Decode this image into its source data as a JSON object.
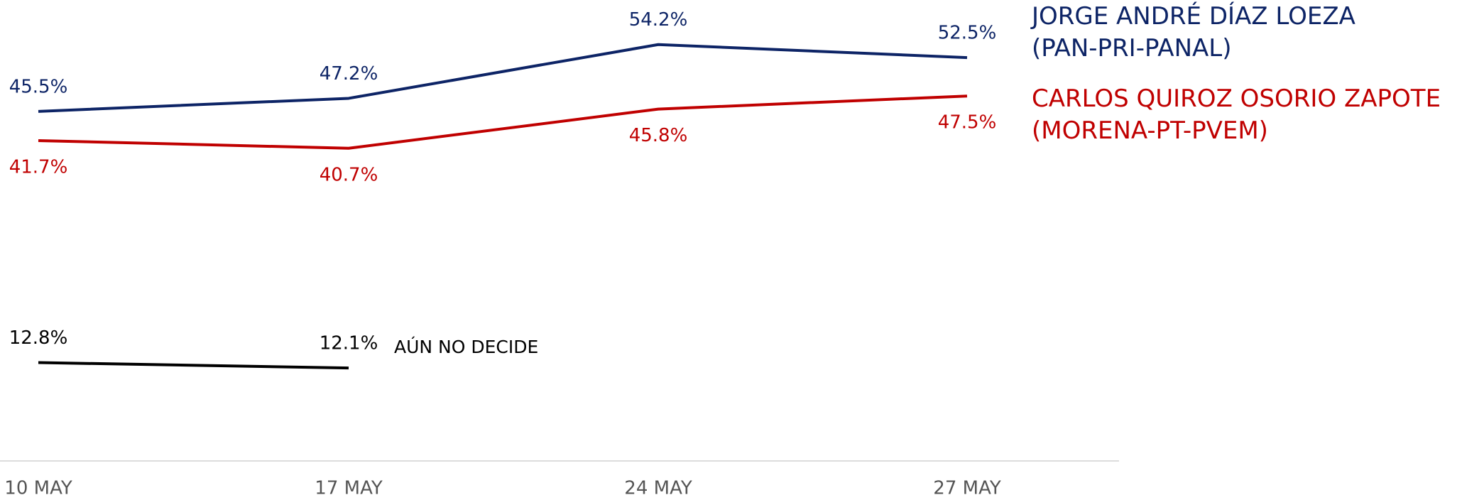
{
  "chart_data": {
    "type": "line",
    "categories": [
      "10 MAY",
      "17 MAY",
      "24 MAY",
      "27 MAY"
    ],
    "series": [
      {
        "name": "JORGE ANDRÉ DÍAZ LOEZA (PAN-PRI-PANAL)",
        "color": "#0d2466",
        "values": [
          45.5,
          47.2,
          54.2,
          52.5
        ],
        "value_labels": [
          "45.5%",
          "47.2%",
          "54.2%",
          "52.5%"
        ]
      },
      {
        "name": "CARLOS QUIROZ OSORIO ZAPOTE (MORENA-PT-PVEM)",
        "color": "#c00000",
        "values": [
          41.7,
          40.7,
          45.8,
          47.5
        ],
        "value_labels": [
          "41.7%",
          "40.7%",
          "45.8%",
          "47.5%"
        ]
      },
      {
        "name": "AÚN NO DECIDE",
        "color": "#000000",
        "values": [
          12.8,
          12.1,
          null,
          null
        ],
        "value_labels": [
          "12.8%",
          "12.1%",
          null,
          null
        ]
      }
    ],
    "ylim": [
      0,
      60
    ]
  }
}
